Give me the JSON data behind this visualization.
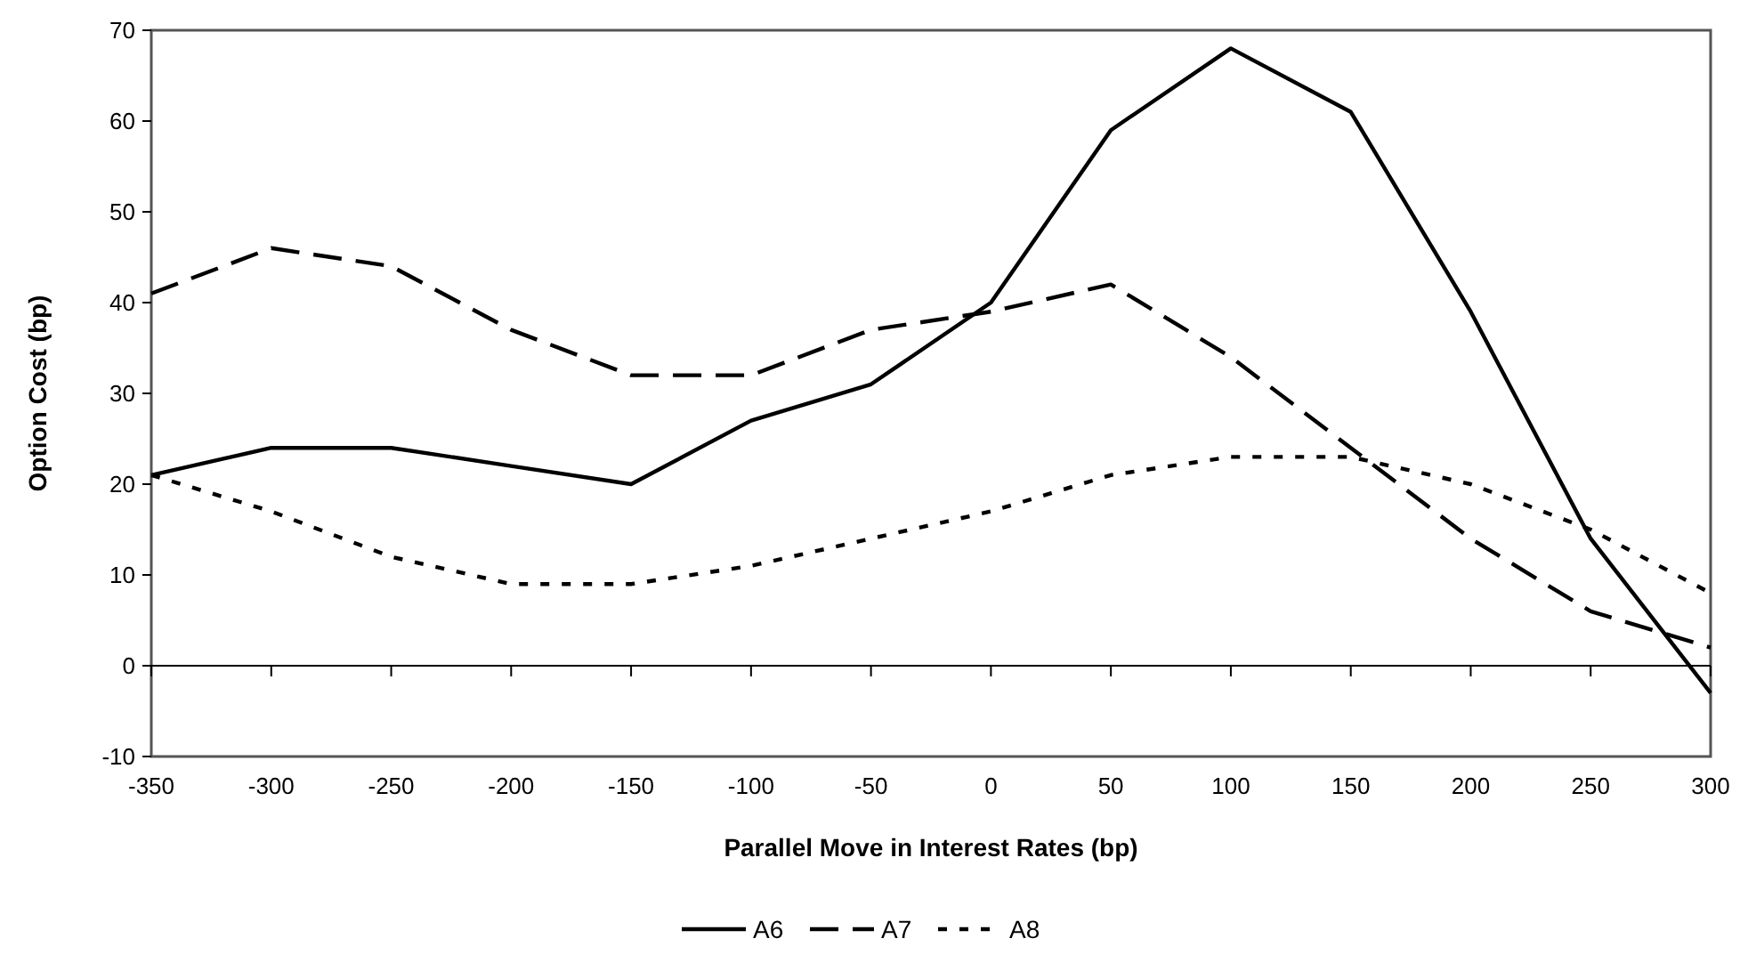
{
  "chart_data": {
    "type": "line",
    "xlabel": "Parallel Move in Interest Rates (bp)",
    "ylabel": "Option Cost (bp)",
    "x": [
      -350,
      -300,
      -250,
      -200,
      -150,
      -100,
      -50,
      0,
      50,
      100,
      150,
      200,
      250,
      300
    ],
    "xlim": [
      -350,
      300
    ],
    "xticks": [
      -350,
      -300,
      -250,
      -200,
      -150,
      -100,
      -50,
      0,
      50,
      100,
      150,
      200,
      250,
      300
    ],
    "ylim": [
      -10,
      70
    ],
    "yticks": [
      -10,
      0,
      10,
      20,
      30,
      40,
      50,
      60,
      70
    ],
    "legend": "bottom",
    "series": [
      {
        "name": "A6",
        "color": "#000000",
        "line_style": "solid",
        "values": [
          21,
          24,
          24,
          22,
          20,
          27,
          31,
          40,
          59,
          68,
          61,
          39,
          14,
          -3
        ]
      },
      {
        "name": "A7",
        "color": "#000000",
        "line_style": "dashed",
        "values": [
          41,
          46,
          44,
          37,
          32,
          32,
          37,
          39,
          42,
          34,
          24,
          14,
          6,
          2
        ]
      },
      {
        "name": "A8",
        "color": "#000000",
        "line_style": "dotted",
        "values": [
          21,
          17,
          12,
          9,
          9,
          11,
          14,
          17,
          21,
          23,
          23,
          20,
          15,
          8
        ]
      }
    ]
  }
}
